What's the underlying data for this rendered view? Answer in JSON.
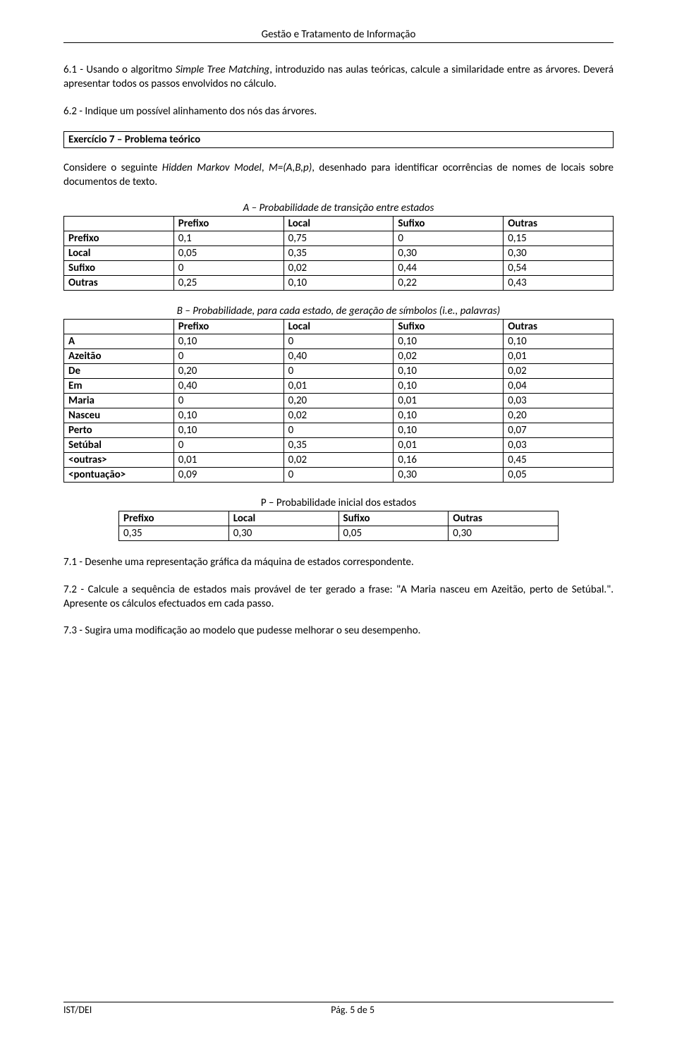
{
  "header": "Gestão e Tratamento de Informação",
  "p61": "6.1 - Usando o algoritmo ",
  "p61_it": "Simple Tree Matching",
  "p61b": ", introduzido nas aulas teóricas, calcule a similaridade entre as árvores. Deverá apresentar todos os passos envolvidos no cálculo.",
  "p62": "6.2 - Indique um possível alinhamento dos nós das árvores.",
  "ex7_title": "Exercício 7 – Problema teórico",
  "ex7_intro_a": "Considere o seguinte ",
  "ex7_intro_it": "Hidden Markov Model",
  "ex7_intro_b": ", ",
  "ex7_intro_it2": "M=(A,B,p)",
  "ex7_intro_c": ", desenhado para identificar ocorrências de nomes de locais sobre documentos de texto.",
  "tableA": {
    "caption": "A – Probabilidade de transição entre estados",
    "headers": [
      "",
      "Prefixo",
      "Local",
      "Sufixo",
      "Outras"
    ],
    "rows": [
      [
        "Prefixo",
        "0,1",
        "0,75",
        "0",
        "0,15"
      ],
      [
        "Local",
        "0,05",
        "0,35",
        "0,30",
        "0,30"
      ],
      [
        "Sufixo",
        "0",
        "0,02",
        "0,44",
        "0,54"
      ],
      [
        "Outras",
        "0,25",
        "0,10",
        "0,22",
        "0,43"
      ]
    ]
  },
  "tableB": {
    "caption": "B – Probabilidade, para cada estado, de geração de símbolos (i.e., palavras)",
    "headers": [
      "",
      "Prefixo",
      "Local",
      "Sufixo",
      "Outras"
    ],
    "rows": [
      [
        "A",
        "0,10",
        "0",
        "0,10",
        "0,10"
      ],
      [
        "Azeitão",
        "0",
        "0,40",
        "0,02",
        "0,01"
      ],
      [
        "De",
        "0,20",
        "0",
        "0,10",
        "0,02"
      ],
      [
        "Em",
        "0,40",
        "0,01",
        "0,10",
        "0,04"
      ],
      [
        "Maria",
        "0",
        "0,20",
        "0,01",
        "0,03"
      ],
      [
        "Nasceu",
        "0,10",
        "0,02",
        "0,10",
        "0,20"
      ],
      [
        "Perto",
        "0,10",
        "0",
        "0,10",
        "0,07"
      ],
      [
        "Setúbal",
        "0",
        "0,35",
        "0,01",
        "0,03"
      ],
      [
        "<outras>",
        "0,01",
        "0,02",
        "0,16",
        "0,45"
      ],
      [
        "<pontuação>",
        "0,09",
        "0",
        "0,30",
        "0,05"
      ]
    ]
  },
  "tableP": {
    "caption": "P – Probabilidade inicial dos estados",
    "headers": [
      "Prefixo",
      "Local",
      "Sufixo",
      "Outras"
    ],
    "rows": [
      [
        "0,35",
        "0,30",
        "0,05",
        "0,30"
      ]
    ]
  },
  "p71": "7.1 - Desenhe uma representação gráfica da máquina de estados correspondente.",
  "p72": "7.2 - Calcule a sequência de estados mais provável de ter gerado a frase: \"A Maria nasceu em Azeitão, perto de Setúbal.\". Apresente os cálculos efectuados em cada passo.",
  "p73": "7.3 - Sugira uma modificação ao modelo que pudesse melhorar o seu desempenho.",
  "footer_left": "IST/DEI",
  "footer_center": "Pág. 5 de 5"
}
